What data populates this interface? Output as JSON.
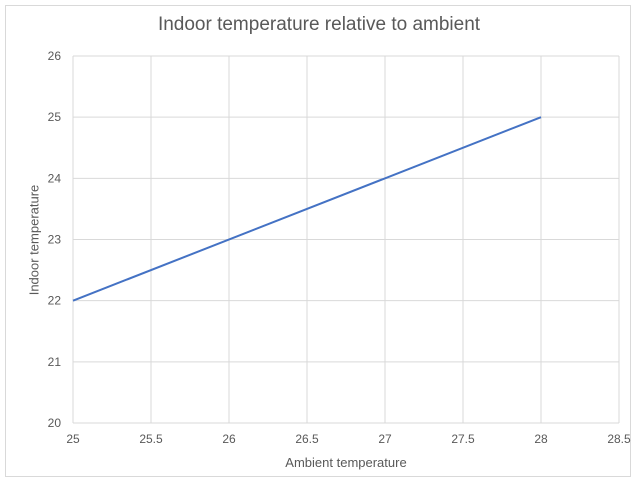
{
  "chart_data": {
    "type": "line",
    "title": "Indoor temperature relative to ambient",
    "xlabel": "Ambient temperature",
    "ylabel": "Indoor temperature",
    "xlim": [
      25,
      28.5
    ],
    "ylim": [
      20,
      26
    ],
    "xticks": [
      "25",
      "25.5",
      "26",
      "26.5",
      "27",
      "27.5",
      "28",
      "28.5"
    ],
    "yticks": [
      "20",
      "21",
      "22",
      "23",
      "24",
      "25",
      "26"
    ],
    "grid": true,
    "series": [
      {
        "x": [
          25,
          28
        ],
        "y": [
          22,
          25
        ],
        "color": "#4472c4"
      }
    ]
  }
}
